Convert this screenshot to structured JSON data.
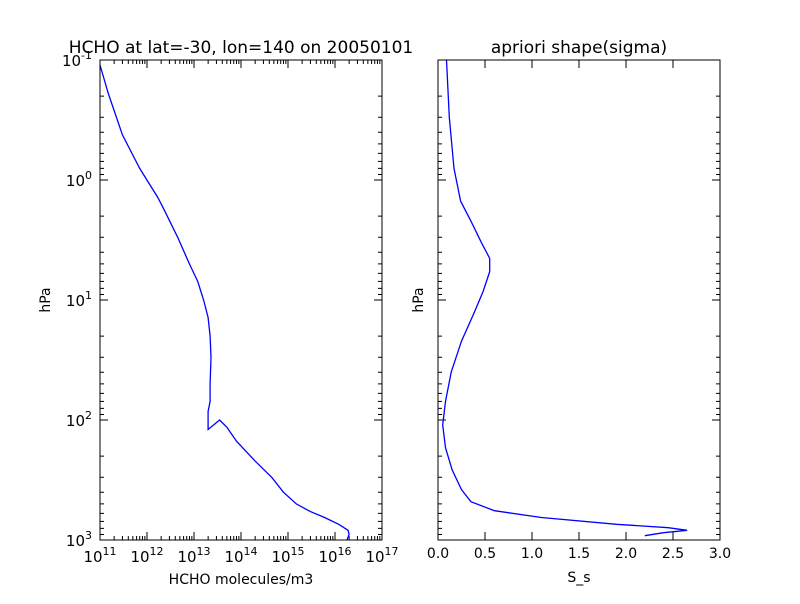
{
  "chart_data": [
    {
      "type": "line",
      "title": "HCHO at lat=-30, lon=140 on 20050101",
      "xlabel": "HCHO molecules/m3",
      "ylabel": "hPa",
      "xscale": "log",
      "yscale": "log",
      "yinverted": true,
      "xlim": [
        100000000000.0,
        1e+17
      ],
      "ylim": [
        1000,
        0.1
      ],
      "xticks": [
        {
          "base": "10",
          "exp": "11"
        },
        {
          "base": "10",
          "exp": "12"
        },
        {
          "base": "10",
          "exp": "13"
        },
        {
          "base": "10",
          "exp": "14"
        },
        {
          "base": "10",
          "exp": "15"
        },
        {
          "base": "10",
          "exp": "16"
        },
        {
          "base": "10",
          "exp": "17"
        }
      ],
      "yticks": [
        {
          "base": "10",
          "exp": "-1"
        },
        {
          "base": "10",
          "exp": "0"
        },
        {
          "base": "10",
          "exp": "1"
        },
        {
          "base": "10",
          "exp": "2"
        },
        {
          "base": "10",
          "exp": "3"
        }
      ],
      "color": "#0000ff",
      "series": [
        {
          "points": [
            [
              100000000000.0,
              0.11
            ],
            [
              150000000000.0,
              0.19
            ],
            [
              300000000000.0,
              0.42
            ],
            [
              700000000000.0,
              0.8
            ],
            [
              1700000000000.0,
              1.4
            ],
            [
              2200000000000.0,
              1.7
            ],
            [
              4500000000000.0,
              3.0
            ],
            [
              8000000000000.0,
              5.0
            ],
            [
              12000000000000.0,
              7.0
            ],
            [
              16000000000000.0,
              10.0
            ],
            [
              20000000000000.0,
              14.0
            ],
            [
              22000000000000.0,
              20.0
            ],
            [
              23000000000000.0,
              30.0
            ],
            [
              22000000000000.0,
              50.0
            ],
            [
              22000000000000.0,
              70.0
            ],
            [
              20000000000000.0,
              85.0
            ],
            [
              20000000000000.0,
              120.0
            ],
            [
              35000000000000.0,
              100.0
            ],
            [
              50000000000000.0,
              115.0
            ],
            [
              80000000000000.0,
              150.0
            ],
            [
              200000000000000.0,
              220.0
            ],
            [
              450000000000000.0,
              300.0
            ],
            [
              800000000000000.0,
              400.0
            ],
            [
              1500000000000000.0,
              500.0
            ],
            [
              3000000000000000.0,
              580.0
            ],
            [
              6000000000000000.0,
              650.0
            ],
            [
              1.2e+16,
              740.0
            ],
            [
              1.9e+16,
              830.0
            ],
            [
              2e+16,
              900.0
            ],
            [
              1.8e+16,
              1000.0
            ]
          ]
        }
      ]
    },
    {
      "type": "line",
      "title": "apriori shape(sigma)",
      "xlabel": "S_s",
      "ylabel": "hPa",
      "yscale": "log",
      "yinverted": true,
      "xlim": [
        0,
        3.0
      ],
      "ylim": [
        1000,
        0.1
      ],
      "xticks": [
        "0.0",
        "0.5",
        "1.0",
        "1.5",
        "2.0",
        "2.5",
        "3.0"
      ],
      "color": "#0000ff",
      "series": [
        {
          "points": [
            [
              0.09,
              0.1
            ],
            [
              0.12,
              0.3
            ],
            [
              0.17,
              0.8
            ],
            [
              0.24,
              1.5
            ],
            [
              0.35,
              2.2
            ],
            [
              0.46,
              3.3
            ],
            [
              0.55,
              4.5
            ],
            [
              0.55,
              5.8
            ],
            [
              0.48,
              8.5
            ],
            [
              0.38,
              13.0
            ],
            [
              0.25,
              22.0
            ],
            [
              0.14,
              40.0
            ],
            [
              0.08,
              70.0
            ],
            [
              0.05,
              110.0
            ],
            [
              0.08,
              170.0
            ],
            [
              0.15,
              260.0
            ],
            [
              0.25,
              380.0
            ],
            [
              0.35,
              480.0
            ],
            [
              0.6,
              570.0
            ],
            [
              1.1,
              650.0
            ],
            [
              1.9,
              740.0
            ],
            [
              2.45,
              790.0
            ],
            [
              2.65,
              830.0
            ],
            [
              2.4,
              870.0
            ],
            [
              2.2,
              920.0
            ]
          ]
        }
      ]
    }
  ]
}
